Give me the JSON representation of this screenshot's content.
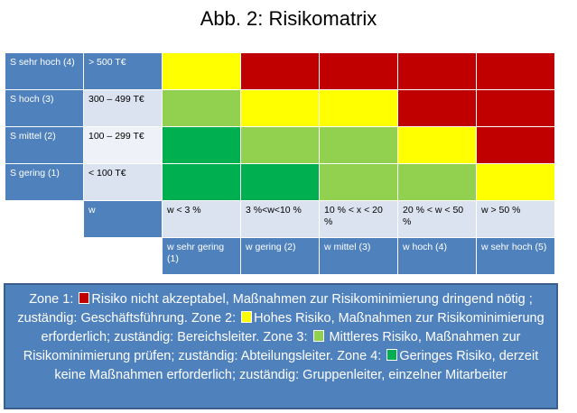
{
  "title": "Abb. 2: Risikomatrix",
  "colors": {
    "yellow": "#ffff00",
    "red": "#c00000",
    "light_green": "#92d050",
    "green": "#00b050"
  },
  "rows": [
    {
      "severity": "S sehr hoch (4)",
      "value": "> 500 T€",
      "zones": [
        "yellow",
        "red",
        "red",
        "red",
        "red"
      ]
    },
    {
      "severity": "S hoch (3)",
      "value": "300 – 499 T€",
      "zones": [
        "light_green",
        "yellow",
        "yellow",
        "red",
        "red"
      ]
    },
    {
      "severity": "S mittel (2)",
      "value": "100 – 299 T€",
      "zones": [
        "green",
        "light_green",
        "light_green",
        "yellow",
        "red"
      ]
    },
    {
      "severity": "S gering (1)",
      "value": "< 100 T€",
      "zones": [
        "green",
        "green",
        "light_green",
        "light_green",
        "yellow"
      ]
    }
  ],
  "w_label": "w",
  "w_ranges": [
    "w < 3 %",
    "3 %<w<10 %",
    "10 % < x < 20 %",
    "20 % < w < 50 %",
    "w > 50 %"
  ],
  "w_classes": [
    "w sehr gering (1)",
    "w gering (2)",
    "w mittel (3)",
    "w hoch (4)",
    "w sehr hoch (5)"
  ],
  "legend": {
    "z1_prefix": "Zone 1: ",
    "z1_text": "Risiko nicht akzeptabel, Maßnahmen zur Risikominimierung dringend nötig ; zuständig: Geschäftsführung. Zone 2: ",
    "z2_text": "Hohes Risiko, Maßnahmen zur Risikominimierung erforderlich; zuständig: Bereichsleiter. Zone 3: ",
    "z3_text": " Mittleres Risiko, Maßnahmen zur Risikominimierung prüfen; zuständig: Abteilungsleiter. Zone 4: ",
    "z4_text": "Geringes Risiko, derzeit keine Maßnahmen erforderlich; zuständig: Gruppenleiter, einzelner Mitarbeiter"
  }
}
